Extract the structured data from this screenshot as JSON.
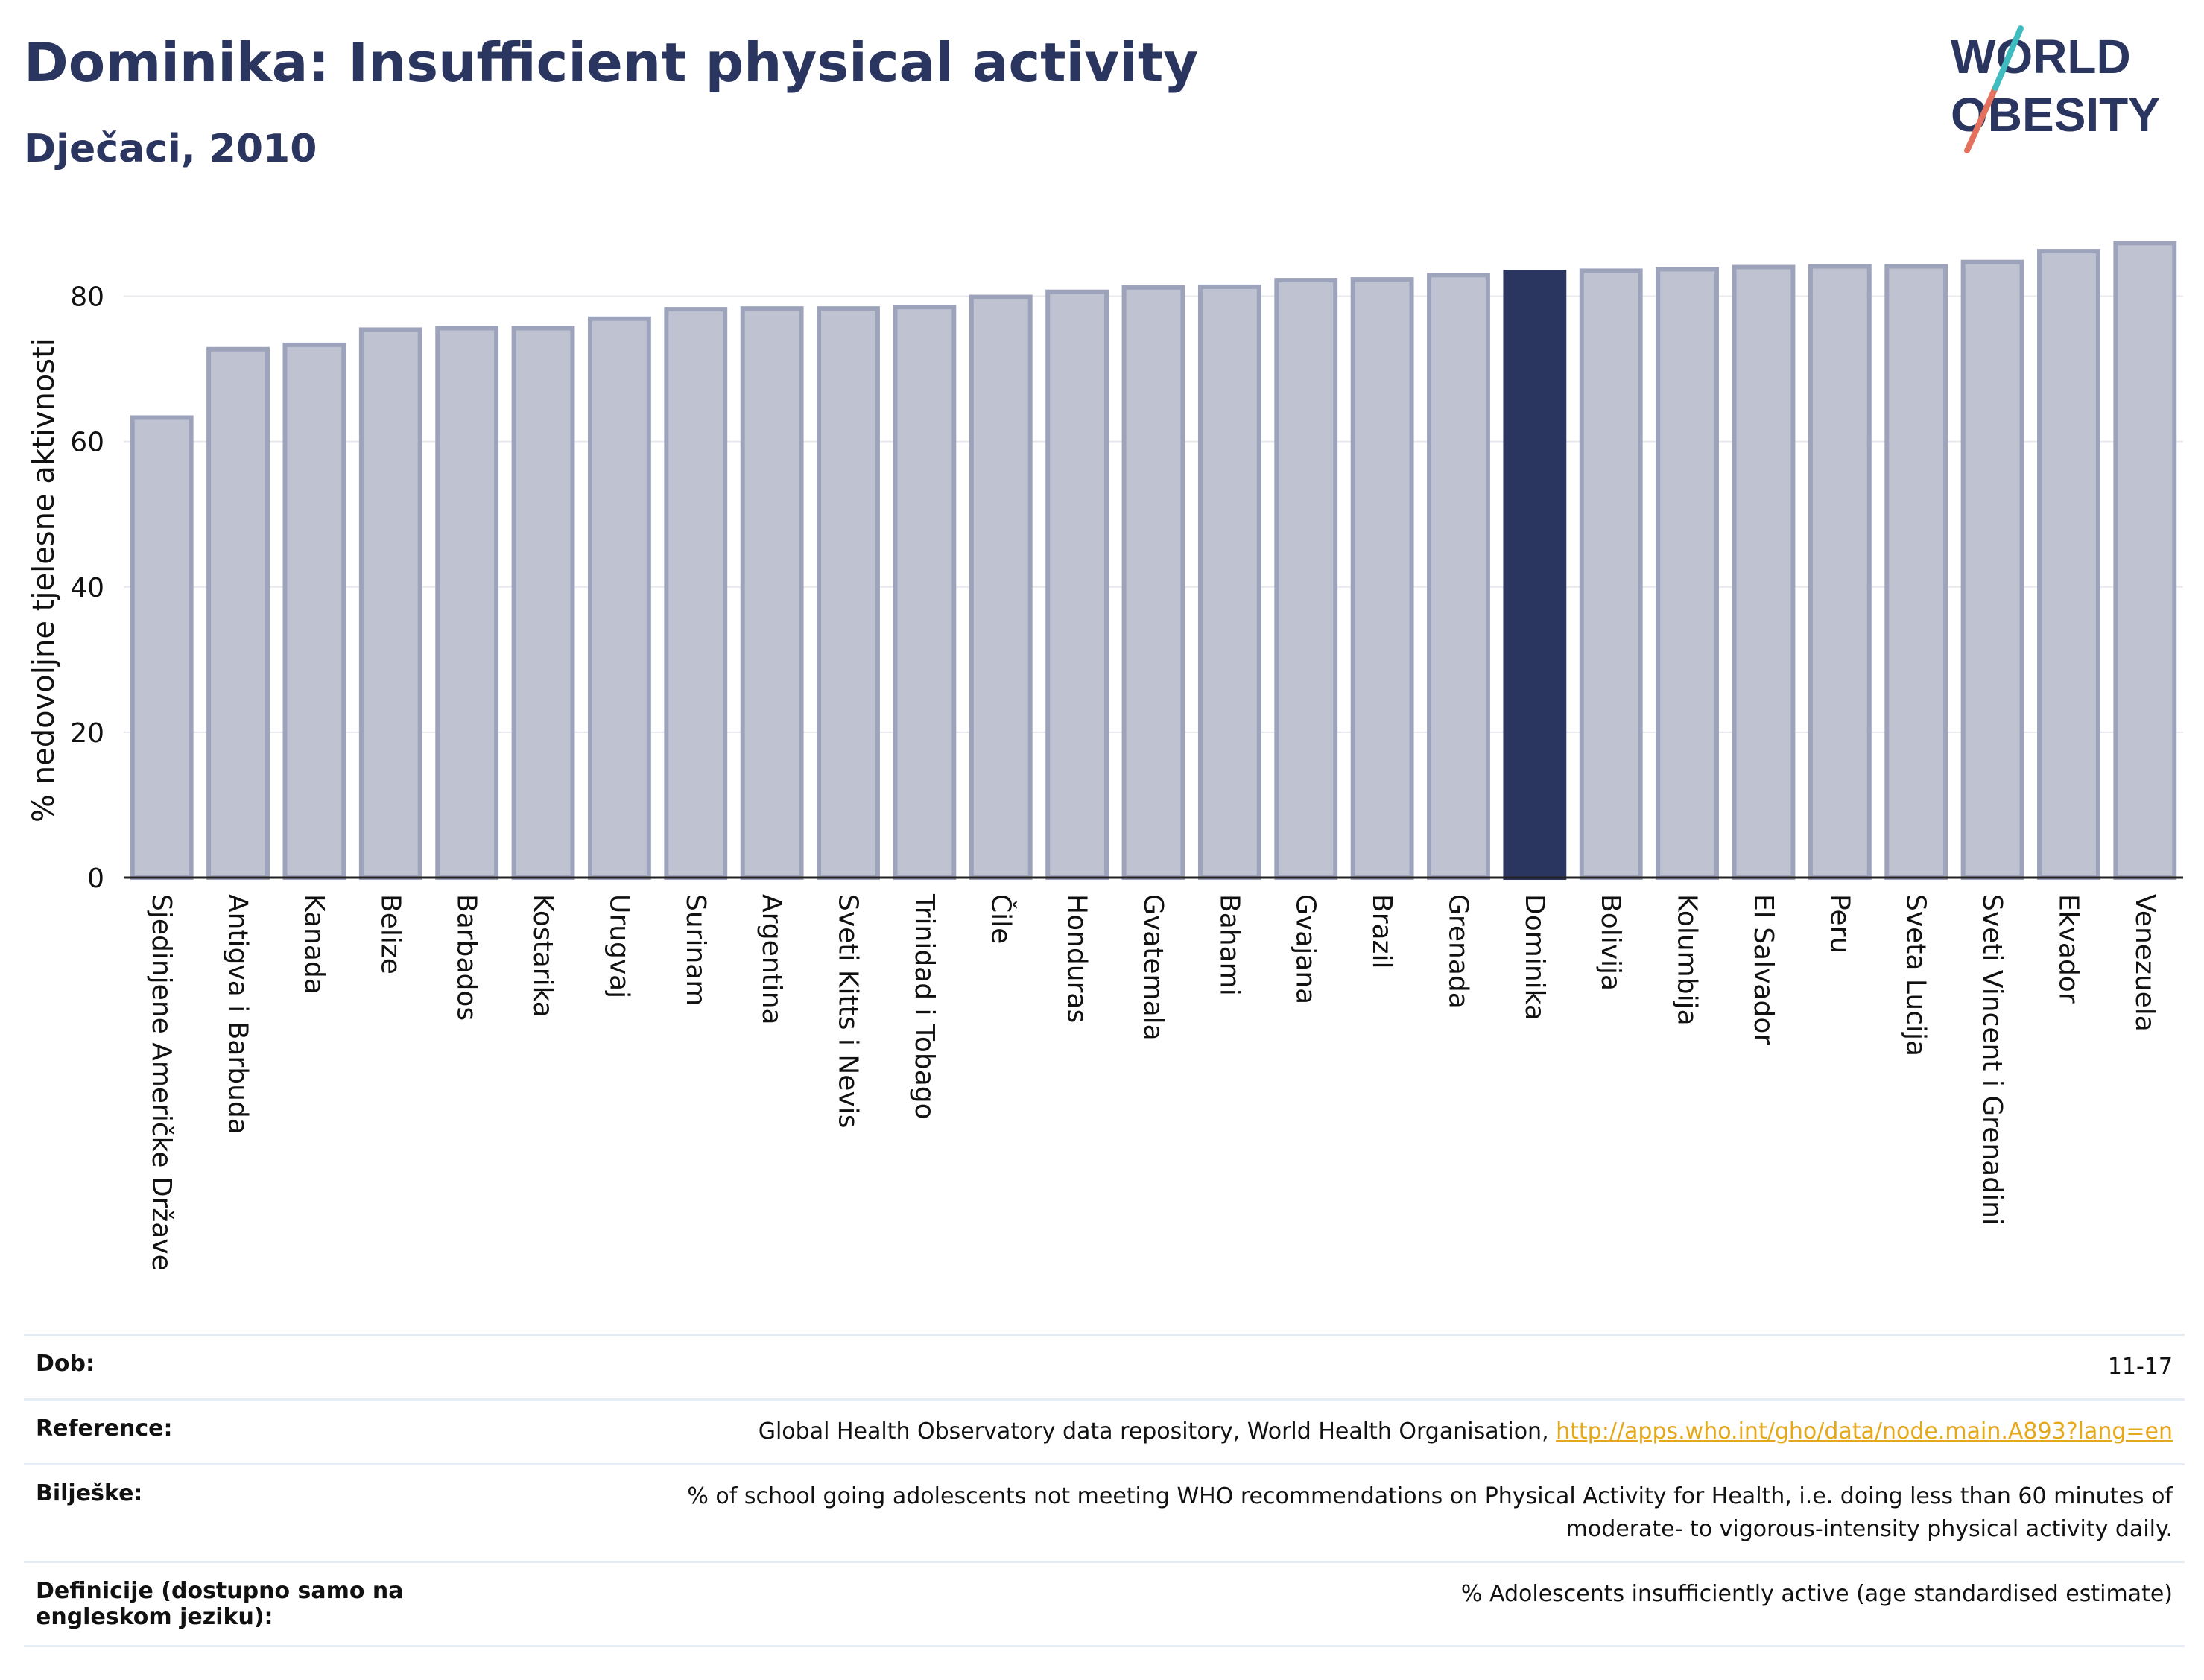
{
  "header": {
    "title": "Dominika: Insufficient physical activity",
    "subtitle": "Dječaci, 2010"
  },
  "logo": {
    "line1": "WORLD",
    "line2": "OBESITY"
  },
  "colors": {
    "title": "#2b3660",
    "bar": "#bfc3d1",
    "bar_stroke": "#9da3bb",
    "highlight": "#2b3660",
    "link": "#e3a91a"
  },
  "chart_data": {
    "type": "bar",
    "ylabel": "% nedovoljne tjelesne aktivnosti",
    "ylim": [
      0,
      90
    ],
    "yticks": [
      0,
      20,
      40,
      60,
      80
    ],
    "grid": true,
    "highlight": "Dominika",
    "categories": [
      "Sjedinjene Američke Države",
      "Antigva i Barbuda",
      "Kanada",
      "Belize",
      "Barbados",
      "Kostarika",
      "Urugvaj",
      "Surinam",
      "Argentina",
      "Sveti Kitts i Nevis",
      "Trinidad i Tobago",
      "Čile",
      "Honduras",
      "Gvatemala",
      "Bahami",
      "Gvajana",
      "Brazil",
      "Grenada",
      "Dominika",
      "Bolivija",
      "Kolumbija",
      "El Salvador",
      "Peru",
      "Sveta Lucija",
      "Sveti Vincent i Grenadini",
      "Ekvador",
      "Venezuela"
    ],
    "values": [
      63.3,
      72.7,
      73.3,
      75.4,
      75.6,
      75.6,
      76.9,
      78.2,
      78.3,
      78.3,
      78.5,
      79.9,
      80.6,
      81.2,
      81.3,
      82.2,
      82.3,
      82.9,
      83.3,
      83.5,
      83.7,
      84.0,
      84.1,
      84.1,
      84.7,
      86.2,
      87.3
    ]
  },
  "info": {
    "age_label": "Dob:",
    "age_value": "11-17",
    "reference_label": "Reference:",
    "reference_text": "Global Health Observatory data repository, World Health Organisation, ",
    "reference_link": "http://apps.who.int/gho/data/node.main.A893?lang=en",
    "notes_label": "Bilješke:",
    "notes_value": "% of school going adolescents not meeting WHO recommendations on Physical Activity for Health, i.e. doing less than 60 minutes of moderate- to vigorous-intensity physical activity daily.",
    "definitions_label": "Definicije (dostupno samo na engleskom jeziku):",
    "definitions_value": "% Adolescents insufficiently active (age standardised estimate)"
  }
}
